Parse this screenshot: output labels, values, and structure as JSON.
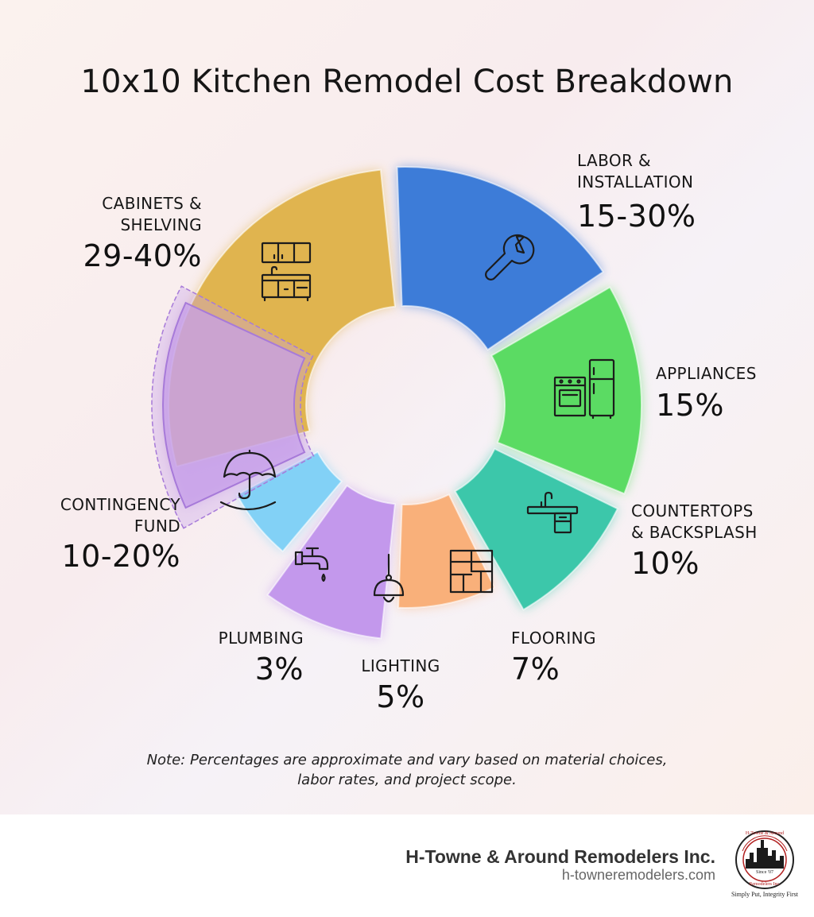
{
  "chart_data": {
    "type": "pie",
    "title": "10x10 Kitchen Remodel Cost Breakdown",
    "segments": [
      {
        "label": "CABINETS &\nSHELVING",
        "value": "29-40%",
        "icon": "kitchen-cabinets-icon",
        "color": "#e0b44f"
      },
      {
        "label": "LABOR &\nINSTALLATION",
        "value": "15-30%",
        "icon": "wrench-icon",
        "color": "#3d7cd8"
      },
      {
        "label": "APPLIANCES",
        "value": "15%",
        "icon": "stove-fridge-icon",
        "color": "#5bdb63"
      },
      {
        "label": "COUNTERTOPS\n& BACKSPLASH",
        "value": "10%",
        "icon": "sink-counter-icon",
        "color": "#3cc7aa"
      },
      {
        "label": "FLOORING",
        "value": "7%",
        "icon": "floor-tiles-icon",
        "color": "#f9b07a"
      },
      {
        "label": "LIGHTING",
        "value": "5%",
        "icon": "pendant-lamp-icon",
        "color": "#c398ec"
      },
      {
        "label": "PLUMBING",
        "value": "3%",
        "icon": "faucet-icon",
        "color": "#82d1f6"
      },
      {
        "label": "CONTINGENCY\nFUND",
        "value": "10-20%",
        "icon": "umbrella-icon",
        "color": "#c7a0ea"
      }
    ]
  },
  "note": {
    "line1": "Note: Percentages are approximate and vary based on material choices,",
    "line2": "labor rates, and project scope."
  },
  "footer": {
    "company_name": "H-Towne & Around Remodelers Inc.",
    "company_url": "h-towneremodelers.com",
    "logo_text_top": "H-Towne & Around",
    "logo_text_bottom": "Remodelers Inc.",
    "logo_since": "Since '07",
    "logo_tagline": "Simply Put, Integrity First"
  }
}
